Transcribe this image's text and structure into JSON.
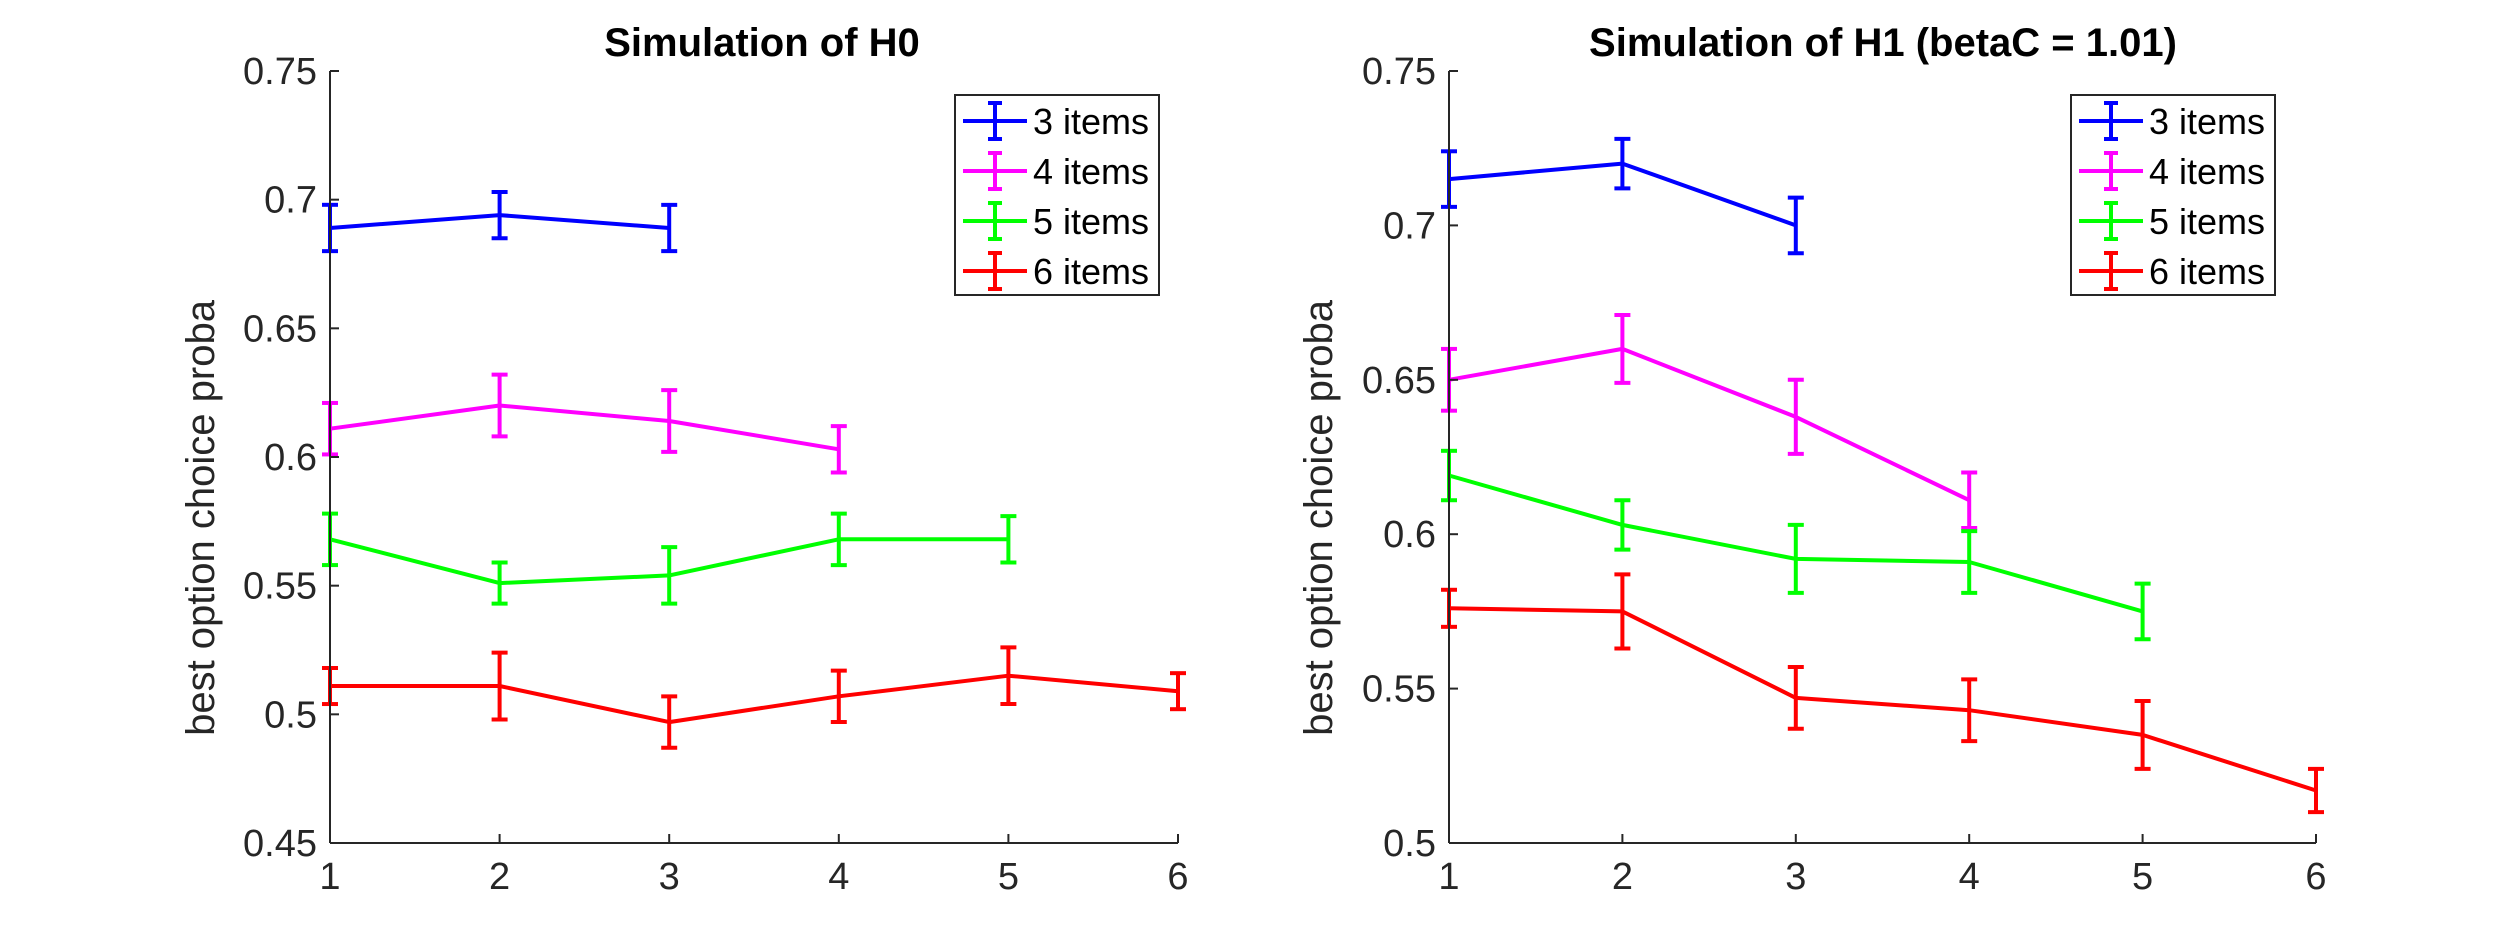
{
  "chart_data": [
    {
      "type": "line",
      "title": "Simulation of H0",
      "xlabel": "",
      "ylabel": "best option choice proba",
      "xlim": [
        1,
        6
      ],
      "ylim": [
        0.45,
        0.75
      ],
      "xticks": [
        1,
        2,
        3,
        4,
        5,
        6
      ],
      "xtick_labels": [
        "1",
        "2",
        "3",
        "4",
        "5",
        "6"
      ],
      "yticks": [
        0.45,
        0.5,
        0.55,
        0.6,
        0.65,
        0.7,
        0.75
      ],
      "ytick_labels": [
        "0.45",
        "0.5",
        "0.55",
        "0.6",
        "0.65",
        "0.7",
        "0.75"
      ],
      "grid": false,
      "legend": "top-right",
      "series": [
        {
          "name": "3 items",
          "color": "#0000ff",
          "x": [
            1,
            2,
            3
          ],
          "y": [
            0.689,
            0.694,
            0.689
          ],
          "err": [
            0.009,
            0.009,
            0.009
          ]
        },
        {
          "name": "4 items",
          "color": "#ff00ff",
          "x": [
            1,
            2,
            3,
            4
          ],
          "y": [
            0.611,
            0.62,
            0.614,
            0.603
          ],
          "err": [
            0.01,
            0.012,
            0.012,
            0.009
          ]
        },
        {
          "name": "5 items",
          "color": "#00ff00",
          "x": [
            1,
            2,
            3,
            4,
            5
          ],
          "y": [
            0.568,
            0.551,
            0.554,
            0.568,
            0.568
          ],
          "err": [
            0.01,
            0.008,
            0.011,
            0.01,
            0.009
          ]
        },
        {
          "name": "6 items",
          "color": "#ff0000",
          "x": [
            1,
            2,
            3,
            4,
            5,
            6
          ],
          "y": [
            0.511,
            0.511,
            0.497,
            0.507,
            0.515,
            0.509
          ],
          "err": [
            0.007,
            0.013,
            0.01,
            0.01,
            0.011,
            0.007
          ]
        }
      ]
    },
    {
      "type": "line",
      "title": "Simulation of H1 (betaC = 1.01)",
      "xlabel": "",
      "ylabel": "best option choice proba",
      "xlim": [
        1,
        6
      ],
      "ylim": [
        0.5,
        0.75
      ],
      "xticks": [
        1,
        2,
        3,
        4,
        5,
        6
      ],
      "xtick_labels": [
        "1",
        "2",
        "3",
        "4",
        "5",
        "6"
      ],
      "yticks": [
        0.5,
        0.55,
        0.6,
        0.65,
        0.7,
        0.75
      ],
      "ytick_labels": [
        "0.5",
        "0.55",
        "0.6",
        "0.65",
        "0.7",
        "0.75"
      ],
      "grid": false,
      "legend": "top-right",
      "series": [
        {
          "name": "3 items",
          "color": "#0000ff",
          "x": [
            1,
            2,
            3
          ],
          "y": [
            0.715,
            0.72,
            0.7
          ],
          "err": [
            0.009,
            0.008,
            0.009
          ]
        },
        {
          "name": "4 items",
          "color": "#ff00ff",
          "x": [
            1,
            2,
            3,
            4
          ],
          "y": [
            0.65,
            0.66,
            0.638,
            0.611
          ],
          "err": [
            0.01,
            0.011,
            0.012,
            0.009
          ]
        },
        {
          "name": "5 items",
          "color": "#00ff00",
          "x": [
            1,
            2,
            3,
            4,
            5
          ],
          "y": [
            0.619,
            0.603,
            0.592,
            0.591,
            0.575
          ],
          "err": [
            0.008,
            0.008,
            0.011,
            0.01,
            0.009
          ]
        },
        {
          "name": "6 items",
          "color": "#ff0000",
          "x": [
            1,
            2,
            3,
            4,
            5,
            6
          ],
          "y": [
            0.576,
            0.575,
            0.547,
            0.543,
            0.535,
            0.517
          ],
          "err": [
            0.006,
            0.012,
            0.01,
            0.01,
            0.011,
            0.007
          ]
        }
      ]
    }
  ]
}
